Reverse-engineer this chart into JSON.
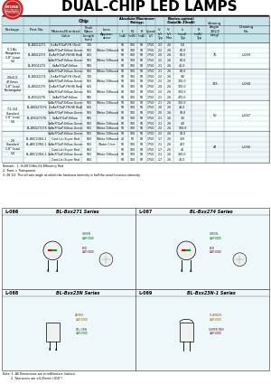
{
  "title": "DUAL-CHIP LED LAMPS",
  "logo_color": "#cc2222",
  "table_header_bg": "#c8e8ec",
  "table_bg": "#e8f8fa",
  "diagram_bg": "#e8f8fa",
  "remarks": [
    "Remark : 1. Hi-Eff Differ./Hi-Efficiency Red",
    "2. Trans = Transparent",
    "3. 2θ 1/2: The off-axis angle at which the luminous intensity is half the axial luminous intensity"
  ],
  "note_bottom": [
    "Note: 1. All Dimensions are in millimeters (inches).",
    "         2. Tolerances are ±0.25mm (.010\")"
  ],
  "diagrams": [
    {
      "label": "L-066",
      "series": "BL-Bxx271 Series"
    },
    {
      "label": "L-067",
      "series": "BL-Bxx274 Series"
    },
    {
      "label": "L-068",
      "series": "BL-Bxx23N Series"
    },
    {
      "label": "L-069",
      "series": "BL-Bxx23N-1 Series"
    }
  ],
  "pkg_groups": [
    {
      "name": "2.0\nStandard\n1.8\" Lead\n5.0",
      "rows": 3,
      "view": "47",
      "draw": "L-066"
    },
    {
      "name": "T-1 3/4\nStandard\n1.8\" Lead\n5.0",
      "rows": 4,
      "view": "50",
      "draw": "L-067"
    },
    {
      "name": "2.0x5.0\n47.0mm\n1.8\" Lead\nRectangular",
      "rows": 4,
      "view": "125",
      "draw": "L-068"
    },
    {
      "name": "0.1 Ax.\nFlangeless\n1.8\" Lead\n5.0",
      "rows": 3,
      "view": "75",
      "draw": "L-069"
    }
  ],
  "row_data": [
    [
      "BL-BBG1271",
      "GaAsP/GaP-YH (Red)",
      "700",
      "",
      "50",
      "100",
      "50",
      "1750",
      "2.2",
      "2.6",
      "5.0"
    ],
    [
      "",
      "GaAsP/GaP-Yellow-Green",
      "565",
      "White Diffused",
      "50",
      "100",
      "50",
      "1750",
      "2.2",
      "2.6",
      "60.0"
    ],
    [
      "BL-BBG1273",
      "GaAsP/GaP-YH (HE Red)",
      "625",
      "",
      "50",
      "100",
      "50",
      "1750",
      "2.0",
      "2.6",
      "60.0"
    ],
    [
      "",
      "GaAsP/GaP-Yellow-Green",
      "565",
      "White Diffused",
      "50",
      "100",
      "50",
      "1750",
      "2.2",
      "2.6",
      "60.0"
    ],
    [
      "BL-BYG1273",
      "GaAsP/GaP-Yellow",
      "585",
      "",
      "50",
      "100",
      "50",
      "1750",
      "2.1",
      "2.6",
      "45.0"
    ],
    [
      "",
      "GaAsP/GaP-Yellow-Green",
      "565",
      "White Diffused",
      "50",
      "100",
      "50",
      "1750",
      "2.1",
      "2.6",
      "60.0"
    ],
    [
      "BL-BBG2274",
      "GaAsP/GaP-YH (Red)",
      "700",
      "",
      "50",
      "100",
      "50",
      "1750",
      "2.2",
      "2.6",
      "9.0"
    ],
    [
      "",
      "GaAsP/GaP-Yellow-Green",
      "565",
      "White Diffused",
      "50",
      "100",
      "50",
      "1750",
      "2.2",
      "2.6",
      "700.0"
    ],
    [
      "BL-BBG2176",
      "GaAsP/GaP-YH (HE Red)",
      "625",
      "",
      "50",
      "100",
      "50",
      "1750",
      "2.0",
      "2.6",
      "700.0"
    ],
    [
      "",
      "GaAsP/GaP-Yellow-Green",
      "565",
      "White Diffused",
      "50",
      "100",
      "50",
      "1750",
      "2.2",
      "2.6",
      "700.0"
    ],
    [
      "BL-BYG2276",
      "GaAsP/GaP-Yellow",
      "585",
      "",
      "50",
      "100",
      "50",
      "1750",
      "2.1",
      "2.6",
      "475.0"
    ],
    [
      "",
      "GaAsP/GaP-Yellow-Green",
      "565",
      "White Diffused",
      "50",
      "100",
      "50",
      "1750",
      "2.1",
      "2.6",
      "700.0"
    ],
    [
      "BL-BBG2276",
      "GaAsP/GaP-Yellow-Green",
      "565",
      "White Diffused",
      "50",
      "100",
      "50",
      "1750",
      "2.2",
      "2.6",
      "0.18"
    ],
    [
      "",
      "",
      "",
      "White Diffused",
      "50",
      "100",
      "50",
      "1750",
      "2.2",
      "2.6",
      "0.18"
    ],
    [
      "BL-BBG27276",
      "GaAsP/GaP-YH (HE Red)",
      "625",
      "",
      "50",
      "100",
      "50",
      "1750",
      "2.0",
      "2.6",
      "44.0"
    ],
    [
      "",
      "GaAsP/GaP-Yellow-Green",
      "565",
      "White Diffused",
      "50",
      "100",
      "50",
      "1750",
      "2.0",
      "2.6",
      "18.0"
    ],
    [
      "BL-BYG27276",
      "GaAsP/GaP-Yellow",
      "585",
      "",
      "50",
      "100",
      "50",
      "1750",
      "2.1",
      "2.6",
      "3.5"
    ],
    [
      "",
      "GaAsP/GaP-Yellow-Green",
      "565",
      "White Diffused",
      "50",
      "100",
      "50",
      "1750",
      "2.1",
      "2.6",
      "4.0"
    ],
    [
      "BL-BBG27276",
      "GaAsP/GaP-Yellow-Green",
      "565",
      "White Diffused",
      "50",
      "100",
      "50",
      "1750",
      "2.2",
      "2.6",
      "100.0"
    ],
    [
      "BL-BBC23N1-1",
      "Cont.Lit./Super Red",
      "660",
      "White Diffused",
      "20",
      "60",
      "50",
      "1750",
      "1.7",
      "2.6",
      "120"
    ],
    [
      "BL-ABC23N1-1",
      "GaAsP/GaP-Yellow-Green",
      "565",
      "Water Clear",
      "50",
      "100",
      "50",
      "1750",
      "2.1",
      "2.6",
      "407"
    ],
    [
      "",
      "Cont.Lit./Super Red",
      "660",
      "",
      "50",
      "100",
      "50",
      "1750",
      "1.7",
      "2.6",
      "40"
    ],
    [
      "BL-BBC23N2-1",
      "GaAsP/GaP-Yellow-Green",
      "565",
      "White Diffused",
      "50",
      "100",
      "50",
      "1750",
      "2.1",
      "2.6",
      "300.0"
    ],
    [
      "",
      "Cont.Lit./Super Red",
      "660",
      "",
      "50",
      "100",
      "50",
      "1750",
      "1.7",
      "2.6",
      "40.0"
    ]
  ]
}
